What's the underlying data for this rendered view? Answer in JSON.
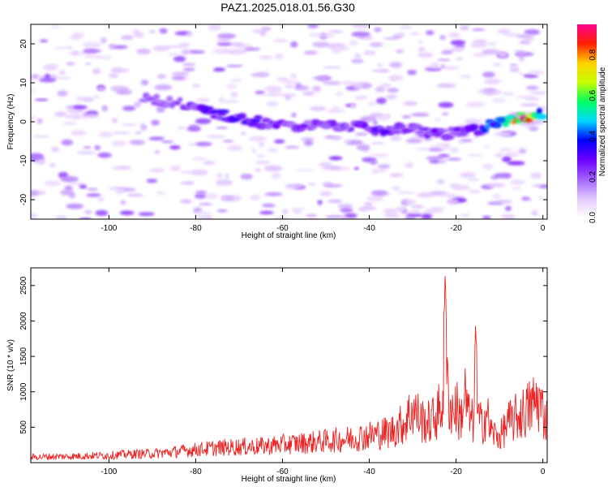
{
  "title": "PAZ1.2025.018.01.56.G30",
  "chart_data": [
    {
      "type": "heatmap",
      "xlabel": "Height of straight line (km)",
      "ylabel": "Frequency (Hz)",
      "xlim": [
        -118,
        1
      ],
      "ylim": [
        -25,
        25
      ],
      "xticks": [
        -100,
        -80,
        -60,
        -40,
        -20,
        0
      ],
      "yticks": [
        -20,
        -10,
        0,
        10,
        20
      ],
      "colorbar": {
        "label": "Normalized spectral amplitude",
        "range": [
          0,
          0.95
        ],
        "ticks": [
          0.0,
          0.2,
          0.4,
          0.6,
          0.8
        ],
        "colors": [
          "#ffffff",
          "#e2c8ff",
          "#a060ff",
          "#6a00ff",
          "#0000ff",
          "#00d8ff",
          "#00ff60",
          "#c8ff00",
          "#ffd000",
          "#ff2000",
          "#ff0090"
        ]
      },
      "ridge": {
        "x": [
          -92,
          -85,
          -80,
          -75,
          -70,
          -65,
          -60,
          -55,
          -50,
          -45,
          -40,
          -35,
          -30,
          -25,
          -20,
          -15,
          -10,
          -5,
          0
        ],
        "frequency": [
          6,
          5,
          4,
          2,
          1,
          0,
          -1,
          -1,
          -1,
          -1,
          -2,
          -2,
          -2,
          -3,
          -3,
          -2,
          0,
          1,
          2
        ],
        "amplitude": [
          0.18,
          0.22,
          0.28,
          0.3,
          0.3,
          0.28,
          0.26,
          0.24,
          0.25,
          0.26,
          0.27,
          0.27,
          0.27,
          0.28,
          0.27,
          0.32,
          0.45,
          0.9,
          0.5
        ]
      }
    },
    {
      "type": "line",
      "xlabel": "Height of straight line (km)",
      "ylabel": "SNR (10 * v/v)",
      "xlim": [
        -118,
        1
      ],
      "ylim": [
        0,
        2750
      ],
      "xticks": [
        -100,
        -80,
        -60,
        -40,
        -20,
        0
      ],
      "yticks": [
        500,
        1000,
        1500,
        2000,
        2500
      ],
      "color": "#ee2222",
      "series": [
        {
          "x": [
            -118,
            -110,
            -100,
            -95,
            -90,
            -85,
            -80,
            -75,
            -70,
            -65,
            -60,
            -55,
            -50,
            -45,
            -40,
            -35,
            -32,
            -30,
            -28,
            -26,
            -24,
            -23,
            -22.5,
            -22,
            -21,
            -20,
            -19,
            -18,
            -17,
            -16,
            -15.5,
            -15,
            -14,
            -13,
            -12,
            -10,
            -8,
            -6,
            -4,
            -2,
            -1,
            0,
            1
          ],
          "y": [
            100,
            110,
            130,
            150,
            160,
            190,
            230,
            260,
            280,
            290,
            320,
            350,
            380,
            420,
            480,
            550,
            700,
            950,
            750,
            700,
            900,
            1100,
            2750,
            1300,
            900,
            1000,
            750,
            1200,
            800,
            700,
            2000,
            800,
            650,
            900,
            550,
            450,
            700,
            800,
            900,
            1050,
            1100,
            900,
            750
          ]
        }
      ]
    }
  ]
}
